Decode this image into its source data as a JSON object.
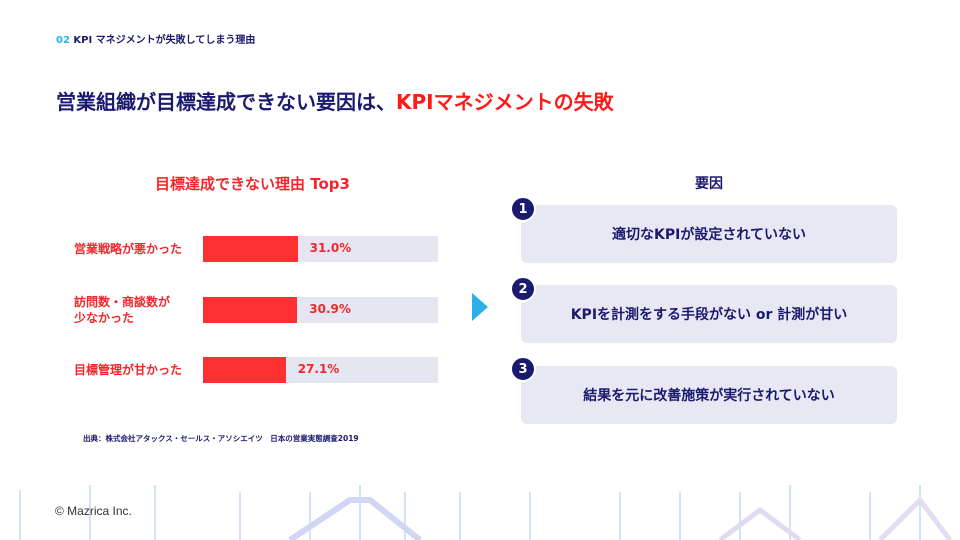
{
  "breadcrumb": {
    "number": "02",
    "text": "KPI マネジメントが失敗してしまう理由"
  },
  "title": {
    "main": "営業組織が目標達成できない要因は、",
    "highlight": "KPIマネジメントの失敗"
  },
  "chart_data": {
    "type": "bar",
    "title": "目標達成できない理由 Top3",
    "categories": [
      "営業戦略が悪かった",
      "訪問数・商談数が少なかった",
      "目標管理が甘かった"
    ],
    "category_lines": [
      [
        "営業戦略が悪かった"
      ],
      [
        "訪問数・商談数が",
        "少なかった"
      ],
      [
        "目標管理が甘かった"
      ]
    ],
    "values": [
      31.0,
      30.9,
      27.1
    ],
    "value_labels": [
      "31.0%",
      "30.9%",
      "27.1%"
    ],
    "orientation": "horizontal",
    "colors": {
      "bar": "#fe3132",
      "track": "#e6e6f2"
    }
  },
  "source": "出典：株式会社アタックス・セールス・アソシエイツ　日本の営業実態調査2019",
  "factors": {
    "title": "要因",
    "items": [
      {
        "number": "1",
        "text": "適切なKPIが設定されていない"
      },
      {
        "number": "2",
        "text": "KPIを計測をする手段がない or 計測が甘い"
      },
      {
        "number": "3",
        "text": "結果を元に改善施策が実行されていない"
      }
    ]
  },
  "footer": {
    "copyright": "© Mazrica Inc."
  },
  "colors": {
    "navy": "#1a1a6e",
    "red": "#f0282d",
    "accent": "#2ab0e6"
  }
}
